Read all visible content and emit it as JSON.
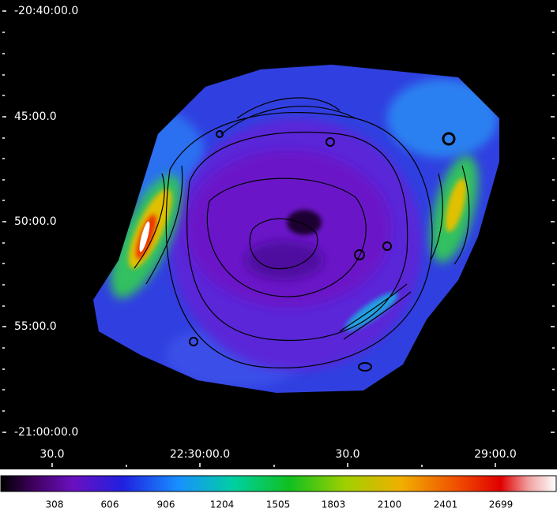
{
  "image": {
    "dec_labels": [
      "-20:40:00.0",
      "45:00.0",
      "50:00.0",
      "55:00.0",
      "-21:00:00.0"
    ],
    "ra_labels": [
      "30.0",
      "22:30:00.0",
      "30.0",
      "29:00.0"
    ],
    "colorbar_ticks": [
      308,
      606,
      906,
      1204,
      1505,
      1803,
      2100,
      2401,
      2699
    ]
  }
}
